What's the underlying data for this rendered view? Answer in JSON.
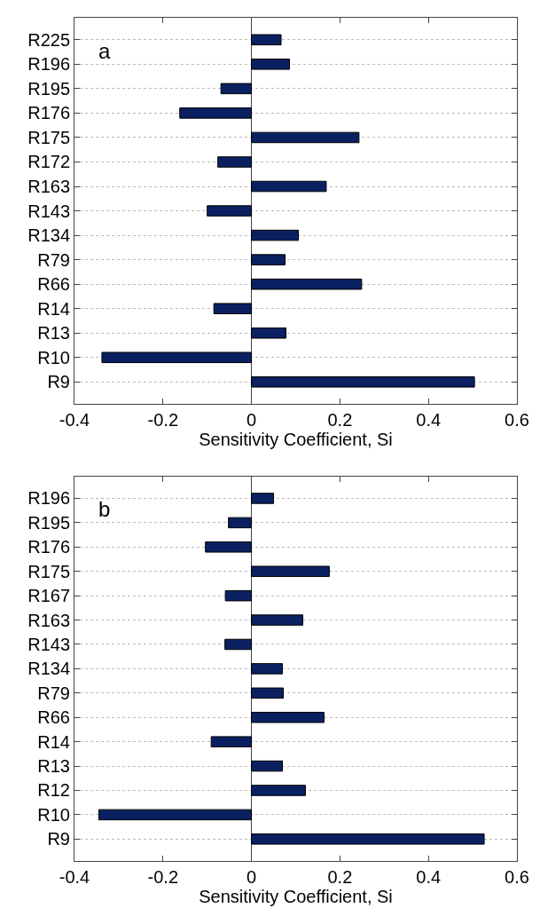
{
  "chart_data": [
    {
      "type": "bar",
      "orientation": "horizontal",
      "xlabel": "Sensitivity Coefficient, Si",
      "annotations": [
        "a"
      ],
      "grid": "y",
      "color": "#0a2060",
      "categories": [
        "R225",
        "R196",
        "R195",
        "R176",
        "R175",
        "R172",
        "R163",
        "R143",
        "R134",
        "R79",
        "R66",
        "R14",
        "R13",
        "R10",
        "R9"
      ],
      "values": [
        0.067,
        0.086,
        -0.069,
        -0.162,
        0.243,
        -0.076,
        0.169,
        -0.1,
        0.106,
        0.076,
        0.249,
        -0.085,
        0.078,
        -0.338,
        0.504
      ],
      "xlim": [
        -0.4,
        0.6
      ],
      "xticks": [
        -0.4,
        -0.2,
        0,
        0.2,
        0.4,
        0.6
      ]
    },
    {
      "type": "bar",
      "orientation": "horizontal",
      "xlabel": "Sensitivity Coefficient, Si",
      "annotations": [
        "b"
      ],
      "grid": "y",
      "color": "#0a2060",
      "categories": [
        "R196",
        "R195",
        "R176",
        "R175",
        "R167",
        "R163",
        "R143",
        "R134",
        "R79",
        "R66",
        "R14",
        "R13",
        "R12",
        "R10",
        "R9"
      ],
      "values": [
        0.05,
        -0.052,
        -0.104,
        0.176,
        -0.059,
        0.116,
        -0.06,
        0.07,
        0.072,
        0.164,
        -0.091,
        0.07,
        0.122,
        -0.345,
        0.526
      ],
      "xlim": [
        -0.4,
        0.6
      ],
      "xticks": [
        -0.4,
        -0.2,
        0,
        0.2,
        0.4,
        0.6
      ]
    }
  ]
}
